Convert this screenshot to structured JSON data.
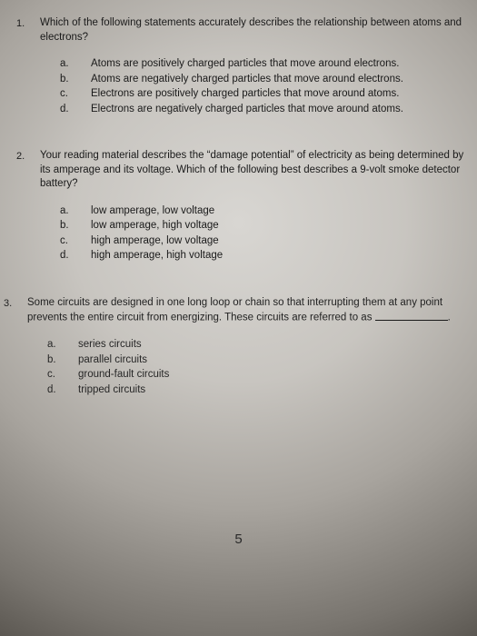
{
  "questions": [
    {
      "number": "1.",
      "prompt": "Which of the following statements accurately describes the relationship between atoms and electrons?",
      "options": [
        {
          "letter": "a.",
          "text": "Atoms are positively charged particles that move around electrons."
        },
        {
          "letter": "b.",
          "text": "Atoms are negatively charged particles that move around electrons."
        },
        {
          "letter": "c.",
          "text": "Electrons are positively charged particles that move around atoms."
        },
        {
          "letter": "d.",
          "text": "Electrons are negatively charged particles that move around atoms."
        }
      ]
    },
    {
      "number": "2.",
      "prompt": "Your reading material describes the “damage potential” of electricity as being determined by its amperage and its voltage. Which of the following best describes a 9-volt smoke detector battery?",
      "options": [
        {
          "letter": "a.",
          "text": "low amperage, low voltage"
        },
        {
          "letter": "b.",
          "text": "low amperage, high voltage"
        },
        {
          "letter": "c.",
          "text": "high amperage, low voltage"
        },
        {
          "letter": "d.",
          "text": "high amperage, high voltage"
        }
      ]
    },
    {
      "number": "3.",
      "prompt_pre": "Some circuits are designed in one long loop or chain so that interrupting them at any point prevents the entire circuit from energizing. These circuits are referred to as ",
      "prompt_post": ".",
      "options": [
        {
          "letter": "a.",
          "text": "series circuits"
        },
        {
          "letter": "b.",
          "text": "parallel circuits"
        },
        {
          "letter": "c.",
          "text": "ground-fault circuits"
        },
        {
          "letter": "d.",
          "text": "tripped circuits"
        }
      ]
    }
  ],
  "page_number": "5"
}
